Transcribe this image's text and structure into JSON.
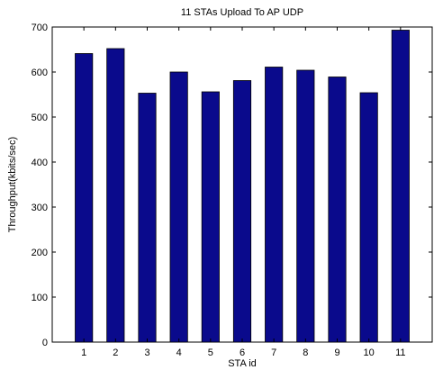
{
  "chart_data": {
    "type": "bar",
    "title": "11 STAs Upload To AP UDP",
    "xlabel": "STA id",
    "ylabel": "Throughput(kbits/sec)",
    "categories": [
      "1",
      "2",
      "3",
      "4",
      "5",
      "6",
      "7",
      "8",
      "9",
      "10",
      "11"
    ],
    "values": [
      641,
      652,
      553,
      600,
      556,
      581,
      611,
      604,
      589,
      554,
      693
    ],
    "ylim": [
      0,
      700
    ],
    "yticks": [
      0,
      100,
      200,
      300,
      400,
      500,
      600,
      700
    ],
    "grid": false,
    "bar_color": "#0a0a8c",
    "bar_edge_color": "#000000"
  }
}
